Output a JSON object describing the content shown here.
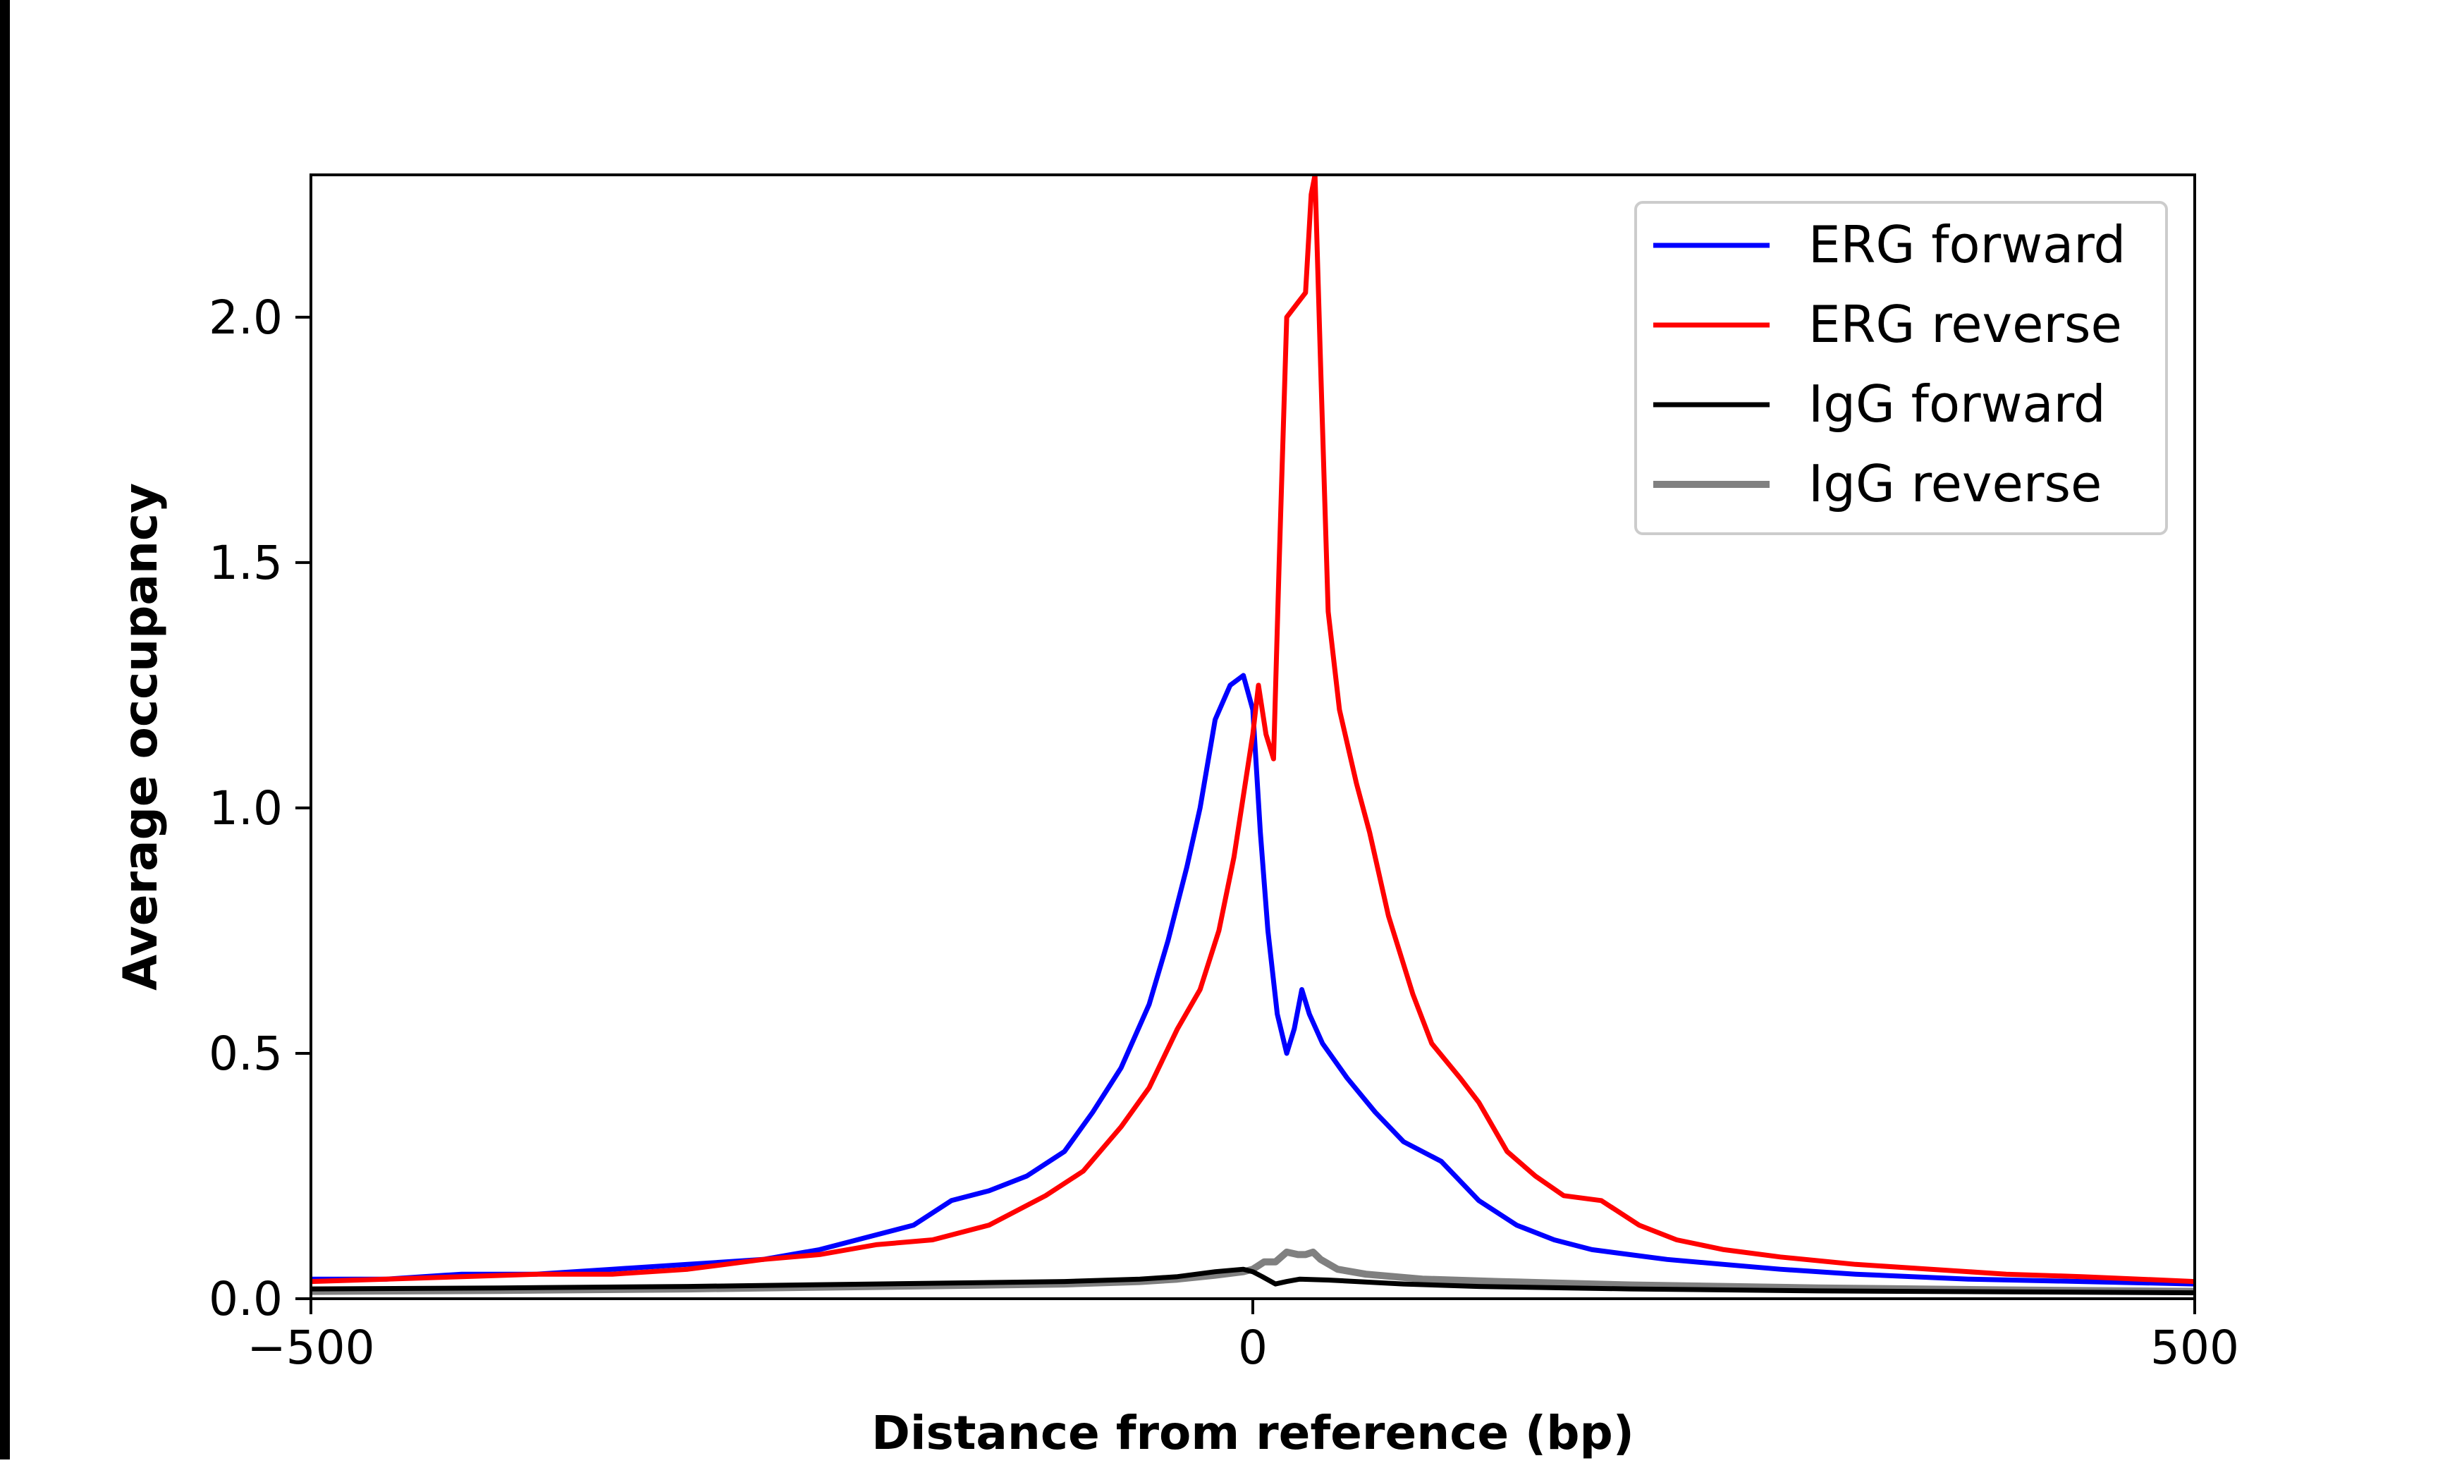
{
  "chart_data": {
    "type": "line",
    "xlabel": "Distance from reference (bp)",
    "ylabel": "Average occupancy",
    "xlim": [
      -500,
      500
    ],
    "ylim": [
      0,
      2.29
    ],
    "x_ticks": [
      {
        "value": -500,
        "label": "−500"
      },
      {
        "value": 0,
        "label": "0"
      },
      {
        "value": 500,
        "label": "500"
      }
    ],
    "y_ticks": [
      {
        "value": 0.0,
        "label": "0.0"
      },
      {
        "value": 0.5,
        "label": "0.5"
      },
      {
        "value": 1.0,
        "label": "1.0"
      },
      {
        "value": 1.5,
        "label": "1.5"
      },
      {
        "value": 2.0,
        "label": "2.0"
      }
    ],
    "grid": false,
    "legend": {
      "placement": "top-right"
    },
    "series": [
      {
        "name": "ERG forward",
        "color": "#0000ff",
        "points": [
          [
            -500,
            0.04
          ],
          [
            -460,
            0.04
          ],
          [
            -420,
            0.05
          ],
          [
            -380,
            0.05
          ],
          [
            -340,
            0.06
          ],
          [
            -300,
            0.07
          ],
          [
            -260,
            0.08
          ],
          [
            -230,
            0.1
          ],
          [
            -200,
            0.13
          ],
          [
            -180,
            0.15
          ],
          [
            -160,
            0.2
          ],
          [
            -140,
            0.22
          ],
          [
            -120,
            0.25
          ],
          [
            -100,
            0.3
          ],
          [
            -85,
            0.38
          ],
          [
            -70,
            0.47
          ],
          [
            -55,
            0.6
          ],
          [
            -45,
            0.73
          ],
          [
            -35,
            0.88
          ],
          [
            -28,
            1.0
          ],
          [
            -20,
            1.18
          ],
          [
            -12,
            1.25
          ],
          [
            -5,
            1.27
          ],
          [
            0,
            1.2
          ],
          [
            4,
            0.95
          ],
          [
            8,
            0.75
          ],
          [
            13,
            0.58
          ],
          [
            18,
            0.5
          ],
          [
            22,
            0.55
          ],
          [
            26,
            0.63
          ],
          [
            30,
            0.58
          ],
          [
            37,
            0.52
          ],
          [
            50,
            0.45
          ],
          [
            65,
            0.38
          ],
          [
            80,
            0.32
          ],
          [
            100,
            0.28
          ],
          [
            120,
            0.2
          ],
          [
            140,
            0.15
          ],
          [
            160,
            0.12
          ],
          [
            180,
            0.1
          ],
          [
            200,
            0.09
          ],
          [
            220,
            0.08
          ],
          [
            250,
            0.07
          ],
          [
            280,
            0.06
          ],
          [
            320,
            0.05
          ],
          [
            380,
            0.04
          ],
          [
            440,
            0.035
          ],
          [
            500,
            0.03
          ]
        ]
      },
      {
        "name": "ERG reverse",
        "color": "#ff0000",
        "points": [
          [
            -500,
            0.035
          ],
          [
            -460,
            0.04
          ],
          [
            -420,
            0.045
          ],
          [
            -380,
            0.05
          ],
          [
            -340,
            0.05
          ],
          [
            -300,
            0.06
          ],
          [
            -260,
            0.08
          ],
          [
            -230,
            0.09
          ],
          [
            -200,
            0.11
          ],
          [
            -170,
            0.12
          ],
          [
            -140,
            0.15
          ],
          [
            -110,
            0.21
          ],
          [
            -90,
            0.26
          ],
          [
            -70,
            0.35
          ],
          [
            -55,
            0.43
          ],
          [
            -40,
            0.55
          ],
          [
            -28,
            0.63
          ],
          [
            -18,
            0.75
          ],
          [
            -10,
            0.9
          ],
          [
            -4,
            1.05
          ],
          [
            0,
            1.15
          ],
          [
            3,
            1.25
          ],
          [
            7,
            1.15
          ],
          [
            11,
            1.1
          ],
          [
            14,
            1.5
          ],
          [
            18,
            2.0
          ],
          [
            24,
            2.03
          ],
          [
            28,
            2.05
          ],
          [
            31,
            2.25
          ],
          [
            33,
            2.29
          ],
          [
            36,
            1.9
          ],
          [
            40,
            1.4
          ],
          [
            46,
            1.2
          ],
          [
            55,
            1.05
          ],
          [
            62,
            0.95
          ],
          [
            72,
            0.78
          ],
          [
            85,
            0.62
          ],
          [
            95,
            0.52
          ],
          [
            110,
            0.45
          ],
          [
            120,
            0.4
          ],
          [
            135,
            0.3
          ],
          [
            150,
            0.25
          ],
          [
            165,
            0.21
          ],
          [
            185,
            0.2
          ],
          [
            205,
            0.15
          ],
          [
            225,
            0.12
          ],
          [
            250,
            0.1
          ],
          [
            280,
            0.085
          ],
          [
            320,
            0.07
          ],
          [
            360,
            0.06
          ],
          [
            400,
            0.05
          ],
          [
            440,
            0.045
          ],
          [
            500,
            0.035
          ]
        ]
      },
      {
        "name": "IgG forward",
        "color": "#000000",
        "points": [
          [
            -500,
            0.02
          ],
          [
            -400,
            0.022
          ],
          [
            -300,
            0.025
          ],
          [
            -200,
            0.03
          ],
          [
            -100,
            0.035
          ],
          [
            -60,
            0.04
          ],
          [
            -40,
            0.045
          ],
          [
            -20,
            0.055
          ],
          [
            -5,
            0.06
          ],
          [
            0,
            0.055
          ],
          [
            5,
            0.045
          ],
          [
            12,
            0.03
          ],
          [
            18,
            0.035
          ],
          [
            25,
            0.04
          ],
          [
            40,
            0.038
          ],
          [
            80,
            0.03
          ],
          [
            120,
            0.025
          ],
          [
            200,
            0.02
          ],
          [
            300,
            0.016
          ],
          [
            400,
            0.014
          ],
          [
            500,
            0.012
          ]
        ]
      },
      {
        "name": "IgG reverse",
        "color": "#808080",
        "points": [
          [
            -500,
            0.015
          ],
          [
            -400,
            0.017
          ],
          [
            -300,
            0.02
          ],
          [
            -200,
            0.025
          ],
          [
            -100,
            0.03
          ],
          [
            -60,
            0.035
          ],
          [
            -40,
            0.04
          ],
          [
            -20,
            0.048
          ],
          [
            -5,
            0.055
          ],
          [
            0,
            0.06
          ],
          [
            6,
            0.075
          ],
          [
            12,
            0.075
          ],
          [
            18,
            0.095
          ],
          [
            24,
            0.09
          ],
          [
            28,
            0.09
          ],
          [
            32,
            0.095
          ],
          [
            36,
            0.08
          ],
          [
            45,
            0.06
          ],
          [
            60,
            0.05
          ],
          [
            90,
            0.04
          ],
          [
            130,
            0.035
          ],
          [
            200,
            0.028
          ],
          [
            300,
            0.022
          ],
          [
            400,
            0.018
          ],
          [
            500,
            0.015
          ]
        ]
      }
    ]
  }
}
